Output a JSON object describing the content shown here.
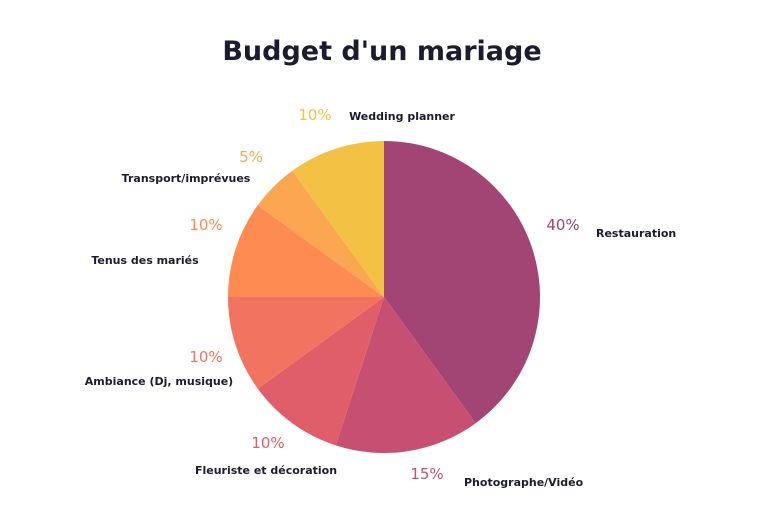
{
  "chart_data": {
    "type": "pie",
    "title": "Budget d'un mariage",
    "slices": [
      {
        "label": "Restauration",
        "value": 40,
        "display": "40%",
        "color": "#a34574"
      },
      {
        "label": "Photographe/Vidéo",
        "value": 15,
        "display": "15%",
        "color": "#c64f72"
      },
      {
        "label": "Fleuriste et décoration",
        "value": 10,
        "display": "10%",
        "color": "#e05d6a"
      },
      {
        "label": "Ambiance (Dj, musique)",
        "value": 10,
        "display": "10%",
        "color": "#f2735f"
      },
      {
        "label": "Tenus des mariés",
        "value": 10,
        "display": "10%",
        "color": "#fd8b52"
      },
      {
        "label": "Transport/imprévues",
        "value": 5,
        "display": "5%",
        "color": "#fba651"
      },
      {
        "label": "Wedding planner",
        "value": 10,
        "display": "10%",
        "color": "#f3c245"
      }
    ]
  }
}
